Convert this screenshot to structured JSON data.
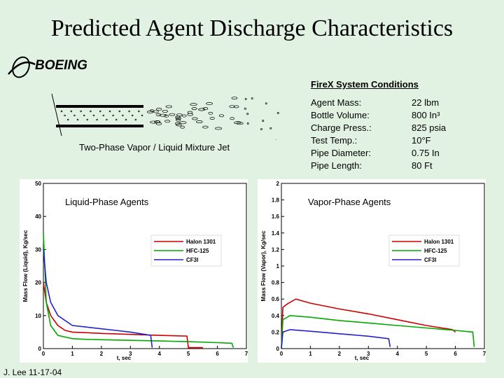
{
  "slide": {
    "title": "Predicted Agent Discharge Characteristics",
    "logo_text": "BOEING",
    "footer": "J. Lee 11-17-04"
  },
  "conditions": {
    "heading": "FireX System Conditions",
    "items": [
      {
        "label": "Agent Mass:",
        "value": "22 lbm"
      },
      {
        "label": "Bottle Volume:",
        "value": "800 In³"
      },
      {
        "label": "Charge Press.:",
        "value": "825 psia"
      },
      {
        "label": "Test Temp.:",
        "value": "10°F"
      },
      {
        "label": "Pipe Diameter:",
        "value": "0.75 In"
      },
      {
        "label": "Pipe Length:",
        "value": "80 Ft"
      }
    ]
  },
  "jet": {
    "caption": "Two-Phase Vapor / Liquid Mixture Jet"
  },
  "colors": {
    "halon": "#cc0000",
    "hfc": "#00aa00",
    "cf3i": "#2222cc",
    "background": "#e2f2e2"
  },
  "chart_data": [
    {
      "type": "line",
      "title": "Liquid-Phase Agents",
      "xlabel": "t, sec",
      "ylabel": "Mass Flow (Liquid), Kg/sec",
      "xlim": [
        0,
        7
      ],
      "ylim": [
        0,
        50
      ],
      "xticks": [
        "0",
        "1",
        "2",
        "3",
        "4",
        "5",
        "6",
        "7"
      ],
      "yticks": [
        "0",
        "10",
        "20",
        "30",
        "40",
        "50"
      ],
      "series": [
        {
          "name": "Halon 1301",
          "color": "#cc0000",
          "x": [
            0,
            0.1,
            0.25,
            0.5,
            0.75,
            1,
            1.5,
            2,
            3,
            4,
            4.95,
            5,
            5.5
          ],
          "y": [
            20,
            14,
            10,
            7,
            5.5,
            5,
            4.8,
            4.6,
            4.3,
            4.0,
            3.8,
            0.3,
            0.3
          ]
        },
        {
          "name": "HFC-125",
          "color": "#00aa00",
          "x": [
            0,
            0.1,
            0.25,
            0.5,
            1,
            1.5,
            2,
            3,
            4,
            5,
            6,
            6.5,
            6.55
          ],
          "y": [
            35,
            14,
            7,
            4,
            3,
            2.8,
            2.7,
            2.5,
            2.3,
            2.1,
            1.8,
            1.6,
            0.3
          ]
        },
        {
          "name": "CF3I",
          "color": "#2222cc",
          "x": [
            0,
            0.1,
            0.25,
            0.5,
            1,
            1.5,
            2,
            2.5,
            3,
            3.5,
            3.7,
            3.75
          ],
          "y": [
            30,
            20,
            14,
            10,
            7,
            6.5,
            6,
            5.5,
            5,
            4.3,
            4.0,
            0.3
          ]
        }
      ]
    },
    {
      "type": "line",
      "title": "Vapor-Phase Agents",
      "xlabel": "t, sec",
      "ylabel": "Mass Flow (Vapor), Kg/sec",
      "xlim": [
        0,
        7
      ],
      "ylim": [
        0,
        2
      ],
      "xticks": [
        "0",
        "1",
        "2",
        "3",
        "4",
        "5",
        "6",
        "7"
      ],
      "yticks": [
        "0",
        "0.2",
        "0.4",
        "0.6",
        "0.8",
        "1",
        "1.2",
        "1.4",
        "1.6",
        "1.8",
        "2"
      ],
      "series": [
        {
          "name": "Halon 1301",
          "color": "#cc0000",
          "x": [
            0,
            0.05,
            0.2,
            0.5,
            1,
            2,
            3,
            4,
            5,
            5.9,
            6
          ],
          "y": [
            0,
            0.5,
            0.54,
            0.6,
            0.55,
            0.48,
            0.42,
            0.35,
            0.28,
            0.23,
            0.2
          ]
        },
        {
          "name": "HFC-125",
          "color": "#00aa00",
          "x": [
            0,
            0.05,
            0.3,
            1,
            2,
            3,
            4,
            5,
            6,
            6.6,
            6.65
          ],
          "y": [
            0,
            0.35,
            0.4,
            0.38,
            0.34,
            0.31,
            0.28,
            0.25,
            0.22,
            0.2,
            0.02
          ]
        },
        {
          "name": "CF3I",
          "color": "#2222cc",
          "x": [
            0,
            0.05,
            0.3,
            1,
            2,
            3,
            3.7,
            3.75
          ],
          "y": [
            0,
            0.2,
            0.23,
            0.21,
            0.18,
            0.15,
            0.12,
            0.02
          ]
        }
      ]
    }
  ]
}
